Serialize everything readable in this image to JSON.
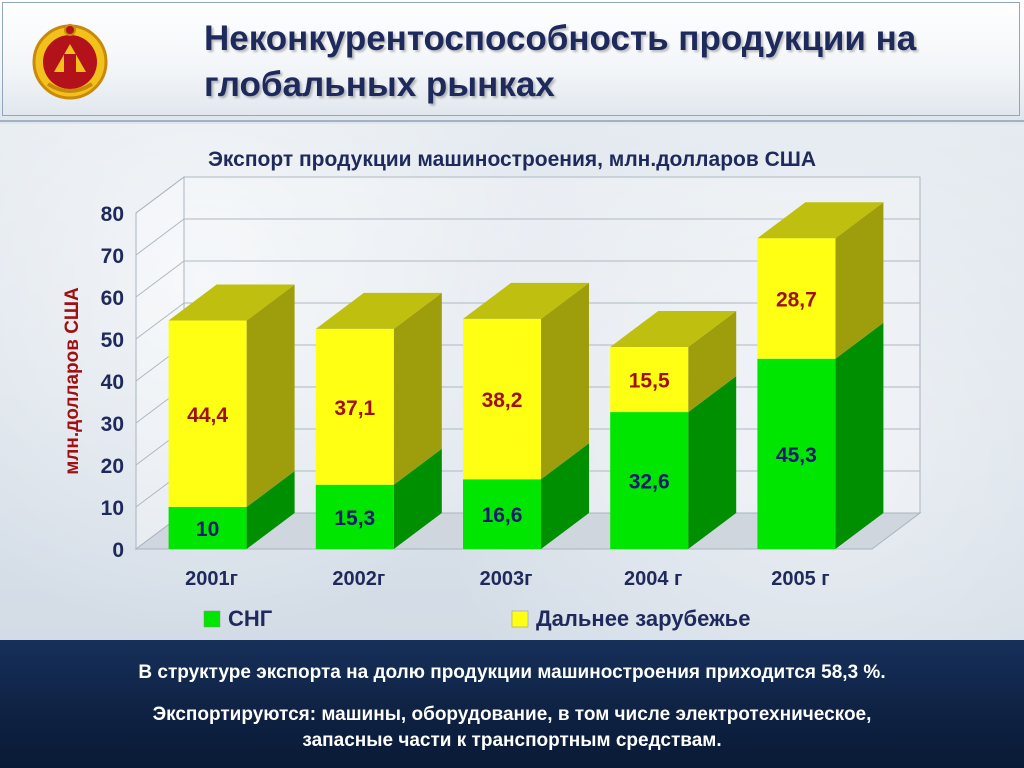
{
  "header": {
    "title_line1": "Неконкурентоспособность продукции на",
    "title_line2": "глобальных рынках"
  },
  "chart_data": {
    "type": "bar",
    "stacked": true,
    "title": "Экспорт продукции машиностроения, млн.долларов США",
    "xlabel": "",
    "ylabel": "млн.долларов США",
    "ylim": [
      0,
      80
    ],
    "yticks": [
      0,
      10,
      20,
      30,
      40,
      50,
      60,
      70,
      80
    ],
    "grid": true,
    "legend_position": "bottom",
    "categories": [
      "2001г",
      "2002г",
      "2003г",
      "2004 г",
      "2005 г"
    ],
    "series": [
      {
        "name": "СНГ",
        "color": "#00e600",
        "values": [
          10,
          15.3,
          16.6,
          32.6,
          45.3
        ],
        "labels": [
          "10",
          "15,3",
          "16,6",
          "32,6",
          "45,3"
        ],
        "label_color": "#1a1a6e"
      },
      {
        "name": "Дальнее зарубежье",
        "color": "#ffff14",
        "values": [
          44.4,
          37.1,
          38.2,
          15.5,
          28.7
        ],
        "labels": [
          "44,4",
          "37,1",
          "38,2",
          "15,5",
          "28,7"
        ],
        "label_color": "#a01010"
      }
    ],
    "axis_label_color": "#a01010"
  },
  "footer": {
    "line1": "В структуре экспорта на долю продукции машиностроения приходится 58,3 %.",
    "line2a": "Экспортируются: машины, оборудование, в том числе электротехническое,",
    "line2b": "запасные части к транспортным средствам."
  }
}
